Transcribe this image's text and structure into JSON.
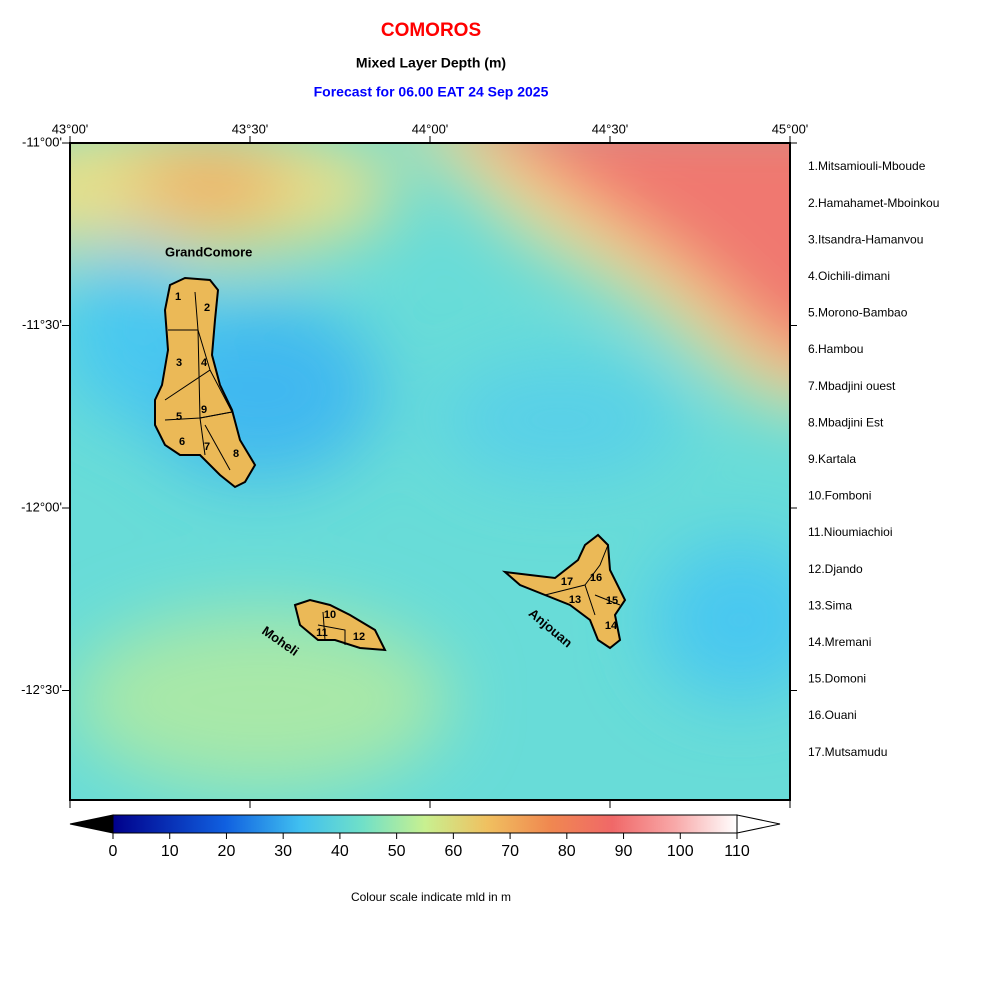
{
  "header": {
    "title": "COMOROS",
    "subtitle": "Mixed Layer Depth (m)",
    "forecast": "Forecast for  06.00 EAT 24 Sep 2025"
  },
  "map": {
    "top_labels": [
      "43°00'",
      "43°30'",
      "44°00'",
      "44°30'",
      "45°00'"
    ],
    "left_labels": [
      "-11°00'",
      "-11°30'",
      "-12°00'",
      "-12°30'"
    ],
    "islands": [
      "GrandComore",
      "Moheli",
      "Anjouan"
    ],
    "district_labels": [
      "1",
      "2",
      "3",
      "4",
      "5",
      "6",
      "7",
      "8",
      "9",
      "10",
      "11",
      "12",
      "13",
      "14",
      "15",
      "16",
      "17"
    ]
  },
  "districts": [
    "1.Mitsamiouli-Mboude",
    "2.Hamahamet-Mboinkou",
    "3.Itsandra-Hamanvou",
    "4.Oichili-dimani",
    "5.Morono-Bambao",
    "6.Hambou",
    "7.Mbadjini ouest",
    "8.Mbadjini Est",
    "9.Kartala",
    "10.Fomboni",
    "11.Nioumiachioi",
    "12.Djando",
    "13.Sima",
    "14.Mremani",
    "15.Domoni",
    "16.Ouani",
    "17.Mutsamudu"
  ],
  "colorbar": {
    "ticks": [
      0,
      10,
      20,
      30,
      40,
      50,
      60,
      70,
      80,
      90,
      100,
      110
    ],
    "caption": "Colour scale indicate mld in m"
  }
}
